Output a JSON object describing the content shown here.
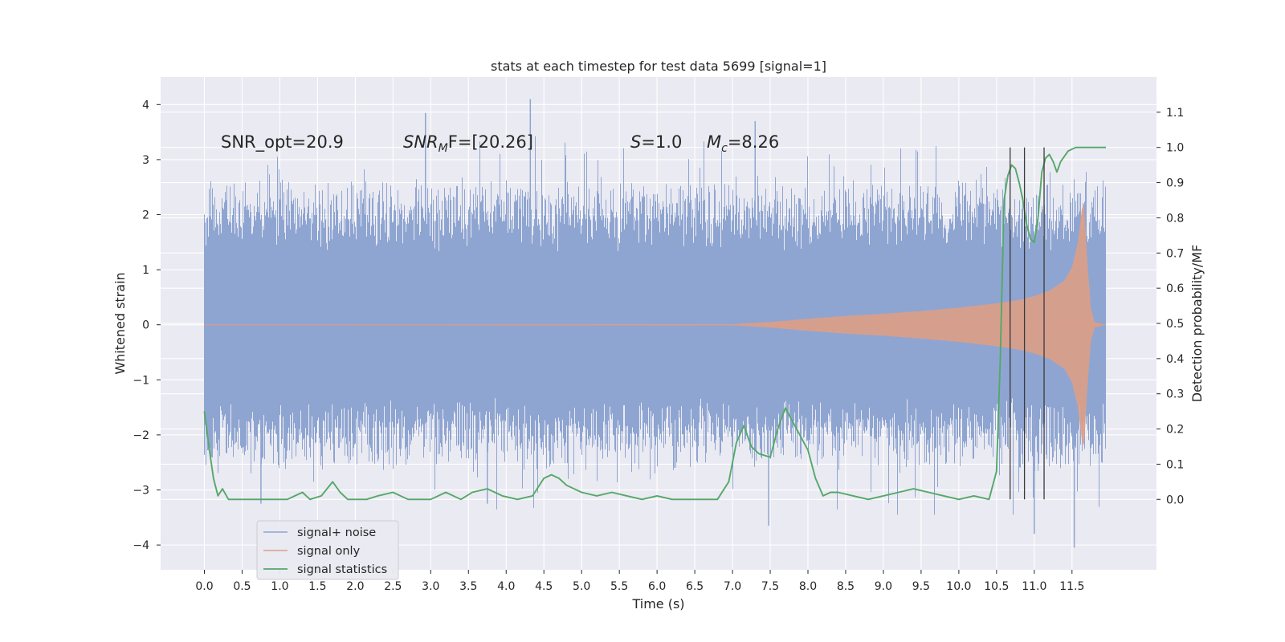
{
  "chart_data": {
    "type": "line",
    "title": "stats at each timestep for test data 5699 [signal=1]",
    "xlabel": "Time (s)",
    "ylabel": "Whitened strain",
    "ylabel_right": "Detection probability/MF",
    "xlim": [
      -0.58,
      12.62
    ],
    "ylim": [
      -4.45,
      4.5
    ],
    "ylim_right": [
      -0.2,
      1.2
    ],
    "grid": true,
    "legend_position": "lower-left",
    "x_ticks": [
      "0.0",
      "0.5",
      "1.0",
      "1.5",
      "2.0",
      "2.5",
      "3.0",
      "3.5",
      "4.0",
      "4.5",
      "5.0",
      "5.5",
      "6.0",
      "6.5",
      "7.0",
      "7.5",
      "8.0",
      "8.5",
      "9.0",
      "9.5",
      "10.0",
      "10.5",
      "11.0",
      "11.5"
    ],
    "y_ticks": [
      "4",
      "3",
      "2",
      "1",
      "0",
      "−1",
      "−2",
      "−3",
      "−4"
    ],
    "y_ticks_right": [
      "1.1",
      "1.0",
      "0.9",
      "0.8",
      "0.7",
      "0.6",
      "0.5",
      "0.4",
      "0.3",
      "0.2",
      "0.1",
      "0.0"
    ],
    "annotations": {
      "snr_opt": "SNR_opt=20.9",
      "snr_mf_base": "SNR",
      "snr_mf_sub": "M",
      "snr_mf_rest": "F=[20.26]",
      "s_sym": "S",
      "s_val": "=1.0",
      "mc_base": "M",
      "mc_sub": "c",
      "mc_val": "=8.26"
    },
    "vlines_x": [
      10.68,
      10.87,
      11.13
    ],
    "series": [
      {
        "name": "signal+ noise",
        "color": "#8fa5d1",
        "description_kind": "noise_band",
        "x_range": [
          0.0,
          11.95
        ],
        "core_amplitude": 1.3,
        "peak_max": 4.1,
        "peak_min": -4.05
      },
      {
        "name": "signal only",
        "color": "#dd9e86",
        "description_kind": "chirp_envelope",
        "x_range": [
          0.0,
          11.95
        ],
        "envelope": [
          [
            0.0,
            0.0
          ],
          [
            7.0,
            0.01
          ],
          [
            7.5,
            0.05
          ],
          [
            8.0,
            0.11
          ],
          [
            8.5,
            0.16
          ],
          [
            9.0,
            0.2
          ],
          [
            9.5,
            0.25
          ],
          [
            10.0,
            0.31
          ],
          [
            10.5,
            0.39
          ],
          [
            10.8,
            0.45
          ],
          [
            11.0,
            0.52
          ],
          [
            11.2,
            0.62
          ],
          [
            11.4,
            0.8
          ],
          [
            11.5,
            1.05
          ],
          [
            11.58,
            1.5
          ],
          [
            11.63,
            2.1
          ],
          [
            11.66,
            2.2
          ],
          [
            11.7,
            1.2
          ],
          [
            11.75,
            0.3
          ],
          [
            11.8,
            0.05
          ],
          [
            11.95,
            0.0
          ]
        ]
      },
      {
        "name": "signal statistics",
        "color": "#55a868",
        "x": [
          0.0,
          0.06,
          0.12,
          0.18,
          0.24,
          0.32,
          0.4,
          0.48,
          0.56,
          0.7,
          0.85,
          1.0,
          1.1,
          1.2,
          1.3,
          1.4,
          1.55,
          1.7,
          1.8,
          1.9,
          2.0,
          2.15,
          2.3,
          2.5,
          2.7,
          2.85,
          3.0,
          3.2,
          3.4,
          3.55,
          3.75,
          3.95,
          4.15,
          4.35,
          4.5,
          4.6,
          4.7,
          4.8,
          5.0,
          5.2,
          5.4,
          5.6,
          5.8,
          6.0,
          6.2,
          6.4,
          6.6,
          6.8,
          6.95,
          7.05,
          7.15,
          7.25,
          7.35,
          7.5,
          7.6,
          7.7,
          7.8,
          7.9,
          8.0,
          8.1,
          8.2,
          8.3,
          8.4,
          8.6,
          8.8,
          9.0,
          9.2,
          9.4,
          9.6,
          9.8,
          10.0,
          10.2,
          10.4,
          10.5,
          10.55,
          10.6,
          10.65,
          10.7,
          10.75,
          10.8,
          10.85,
          10.9,
          10.95,
          11.0,
          11.05,
          11.1,
          11.15,
          11.2,
          11.25,
          11.3,
          11.35,
          11.45,
          11.55,
          11.6,
          11.65,
          11.7,
          11.8,
          11.9,
          11.95
        ],
        "values": [
          0.25,
          0.15,
          0.06,
          0.01,
          0.03,
          0.0,
          0.0,
          0.0,
          0.0,
          0.0,
          0.0,
          0.0,
          0.0,
          0.01,
          0.02,
          0.0,
          0.01,
          0.05,
          0.02,
          0.0,
          0.0,
          0.0,
          0.01,
          0.02,
          0.0,
          0.0,
          0.0,
          0.02,
          0.0,
          0.02,
          0.03,
          0.01,
          0.0,
          0.01,
          0.06,
          0.07,
          0.06,
          0.04,
          0.02,
          0.01,
          0.02,
          0.01,
          0.0,
          0.01,
          0.0,
          0.0,
          0.0,
          0.0,
          0.05,
          0.16,
          0.21,
          0.15,
          0.13,
          0.12,
          0.2,
          0.26,
          0.22,
          0.18,
          0.14,
          0.06,
          0.01,
          0.02,
          0.02,
          0.01,
          0.0,
          0.01,
          0.02,
          0.03,
          0.02,
          0.01,
          0.0,
          0.01,
          0.0,
          0.08,
          0.4,
          0.85,
          0.92,
          0.95,
          0.94,
          0.9,
          0.85,
          0.78,
          0.74,
          0.73,
          0.8,
          0.93,
          0.97,
          0.98,
          0.96,
          0.93,
          0.96,
          0.99,
          1.0,
          1.0,
          1.0,
          1.0,
          1.0,
          1.0,
          1.0
        ]
      }
    ]
  }
}
